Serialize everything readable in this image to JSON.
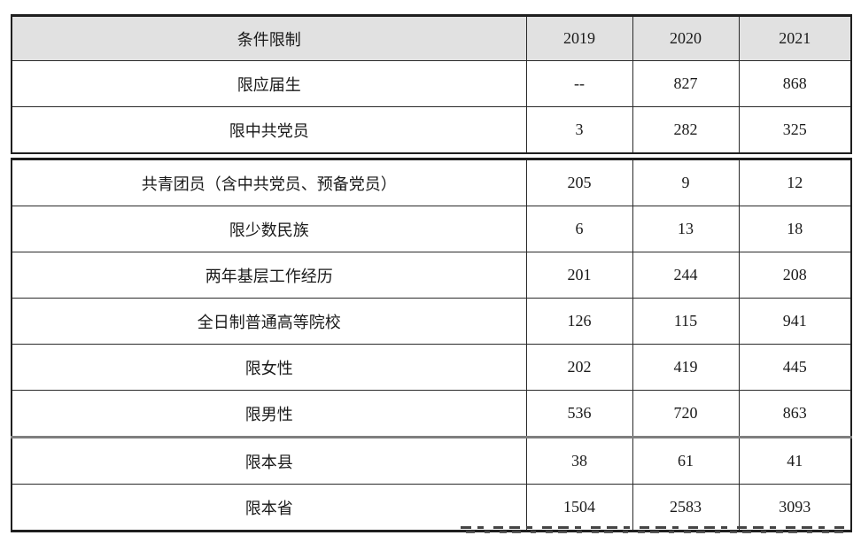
{
  "table": {
    "header": {
      "condition": "条件限制",
      "years": [
        "2019",
        "2020",
        "2021"
      ]
    },
    "rows": [
      {
        "label": "限应届生",
        "values": [
          "--",
          "827",
          "868"
        ]
      },
      {
        "label": "限中共党员",
        "values": [
          "3",
          "282",
          "325"
        ]
      },
      {
        "label": "共青团员（含中共党员、预备党员）",
        "values": [
          "205",
          "9",
          "12"
        ]
      },
      {
        "label": "限少数民族",
        "values": [
          "6",
          "13",
          "18"
        ]
      },
      {
        "label": "两年基层工作经历",
        "values": [
          "201",
          "244",
          "208"
        ]
      },
      {
        "label": "全日制普通高等院校",
        "values": [
          "126",
          "115",
          "941"
        ]
      },
      {
        "label": "限女性",
        "values": [
          "202",
          "419",
          "445"
        ]
      },
      {
        "label": "限男性",
        "values": [
          "536",
          "720",
          "863"
        ]
      },
      {
        "label": "限本县",
        "values": [
          "38",
          "61",
          "41"
        ]
      },
      {
        "label": "限本省",
        "values": [
          "1504",
          "2583",
          "3093"
        ]
      }
    ],
    "colors": {
      "header_background": "#e1e1e1",
      "border": "#1f1f1f",
      "gray_divider": "#7f7f7f",
      "text": "#1a1a1a"
    }
  }
}
